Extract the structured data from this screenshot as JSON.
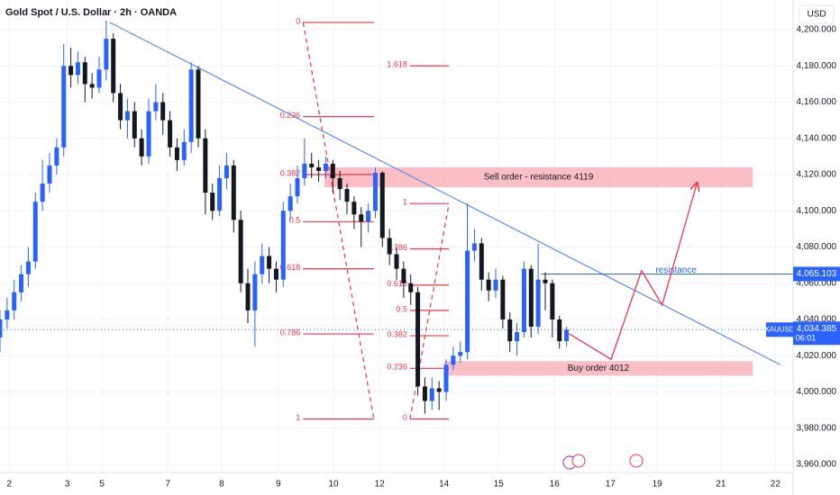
{
  "chart_data": {
    "type": "candlestick",
    "title": "Gold Spot / U.S. Dollar · 2h · OANDA",
    "currency": "USD",
    "symbol": "XAUUSD",
    "countdown": "06:01",
    "last_price": {
      "value": 4034.385,
      "label": "4,034.385"
    },
    "up_color": "#2962ff",
    "down_color": "#131722",
    "grid": true,
    "xlim": [
      0,
      112
    ],
    "ylim": [
      3955.5,
      4216.4
    ],
    "xticks": [
      {
        "value": 1.3,
        "label": "2"
      },
      {
        "value": 9.5,
        "label": "3"
      },
      {
        "value": 14.4,
        "label": "5"
      },
      {
        "value": 23.7,
        "label": "7"
      },
      {
        "value": 31.3,
        "label": "8"
      },
      {
        "value": 39.3,
        "label": "9"
      },
      {
        "value": 47.1,
        "label": "10"
      },
      {
        "value": 53.6,
        "label": "12"
      },
      {
        "value": 62.7,
        "label": "14"
      },
      {
        "value": 70.4,
        "label": "15"
      },
      {
        "value": 78.3,
        "label": "16"
      },
      {
        "value": 86.2,
        "label": "17"
      },
      {
        "value": 92.8,
        "label": "19"
      },
      {
        "value": 101.8,
        "label": "21"
      },
      {
        "value": 109.5,
        "label": "22"
      }
    ],
    "yticks": [
      {
        "value": 3960,
        "label": "3,960.000"
      },
      {
        "value": 3980,
        "label": "3,980.000"
      },
      {
        "value": 4000,
        "label": "4,000.000"
      },
      {
        "value": 4020,
        "label": "4,020.000"
      },
      {
        "value": 4040,
        "label": "4,040.000"
      },
      {
        "value": 4060,
        "label": "4,060.000"
      },
      {
        "value": 4080,
        "label": "4,080.000"
      },
      {
        "value": 4100,
        "label": "4,100.000"
      },
      {
        "value": 4120,
        "label": "4,120.000"
      },
      {
        "value": 4140,
        "label": "4,140.000"
      },
      {
        "value": 4160,
        "label": "4,160.000"
      },
      {
        "value": 4180,
        "label": "4,180.000"
      },
      {
        "value": 4200,
        "label": "4,200.000"
      }
    ],
    "x": [
      0,
      1,
      2,
      3,
      4,
      5,
      6,
      7,
      8,
      9,
      10,
      11,
      12,
      13,
      14,
      15,
      16,
      17,
      18,
      19,
      20,
      21,
      22,
      23,
      24,
      25,
      26,
      27,
      28,
      29,
      30,
      31,
      32,
      33,
      34,
      35,
      36,
      37,
      38,
      39,
      40,
      41,
      42,
      43,
      44,
      45,
      46,
      47,
      48,
      49,
      50,
      51,
      52,
      53,
      54,
      55,
      56,
      57,
      58,
      59,
      60,
      61,
      62,
      63,
      64,
      65,
      66,
      67,
      68,
      69,
      70,
      71,
      72,
      73,
      74,
      75,
      76,
      77,
      78,
      79,
      80
    ],
    "open": [
      4030,
      4040,
      4045,
      4055,
      4065,
      4072,
      4105,
      4115,
      4125,
      4135,
      4180,
      4175,
      4182,
      4170,
      4168,
      4178,
      4195,
      4165,
      4150,
      4155,
      4140,
      4130,
      4155,
      4160,
      4150,
      4135,
      4128,
      4138,
      4178,
      4140,
      4110,
      4100,
      4118,
      4125,
      4095,
      4060,
      4045,
      4065,
      4075,
      4068,
      4062,
      4100,
      4108,
      4118,
      4126,
      4124,
      4122,
      4126,
      4118,
      4112,
      4105,
      4098,
      4094,
      4100,
      4121,
      4085,
      4076,
      4068,
      4060,
      4055,
      4003,
      3995,
      4002,
      4000,
      4015,
      4020,
      4022,
      4078,
      4082,
      4062,
      4056,
      4062,
      4040,
      4028,
      4033,
      4068,
      4036,
      4062,
      4060,
      4040,
      4028
    ],
    "high": [
      4045,
      4052,
      4062,
      4070,
      4080,
      4110,
      4128,
      4132,
      4140,
      4192,
      4190,
      4188,
      4185,
      4176,
      4185,
      4205,
      4198,
      4170,
      4162,
      4160,
      4145,
      4162,
      4170,
      4165,
      4155,
      4140,
      4145,
      4182,
      4180,
      4145,
      4115,
      4125,
      4132,
      4128,
      4100,
      4068,
      4072,
      4082,
      4080,
      4072,
      4105,
      4115,
      4125,
      4140,
      4132,
      4128,
      4130,
      4128,
      4122,
      4115,
      4108,
      4102,
      4104,
      4124,
      4122,
      4090,
      4080,
      4072,
      4065,
      4058,
      4008,
      4008,
      4006,
      4018,
      4025,
      4028,
      4104,
      4090,
      4085,
      4066,
      4068,
      4064,
      4044,
      4038,
      4072,
      4070,
      4082,
      4066,
      4062,
      4042,
      4036
    ],
    "low": [
      4022,
      4035,
      4040,
      4050,
      4058,
      4068,
      4100,
      4110,
      4120,
      4130,
      4168,
      4170,
      4160,
      4162,
      4165,
      4172,
      4160,
      4145,
      4140,
      4135,
      4125,
      4126,
      4150,
      4142,
      4130,
      4122,
      4125,
      4132,
      4135,
      4098,
      4095,
      4097,
      4112,
      4088,
      4055,
      4038,
      4025,
      4060,
      4060,
      4055,
      4058,
      4095,
      4104,
      4114,
      4118,
      4116,
      4118,
      4110,
      4106,
      4098,
      4090,
      4080,
      4088,
      4096,
      4080,
      4070,
      4062,
      4052,
      4048,
      3998,
      3988,
      3990,
      3990,
      3995,
      4012,
      4016,
      4018,
      4072,
      4056,
      4050,
      4052,
      4035,
      4022,
      4020,
      4030,
      4030,
      4032,
      4045,
      4030,
      4024,
      4025
    ],
    "close": [
      4040,
      4045,
      4055,
      4065,
      4072,
      4105,
      4115,
      4125,
      4135,
      4180,
      4175,
      4182,
      4170,
      4168,
      4178,
      4195,
      4165,
      4150,
      4155,
      4140,
      4130,
      4155,
      4160,
      4150,
      4135,
      4128,
      4138,
      4178,
      4140,
      4110,
      4100,
      4118,
      4125,
      4095,
      4060,
      4045,
      4065,
      4075,
      4068,
      4062,
      4100,
      4108,
      4118,
      4126,
      4124,
      4122,
      4126,
      4118,
      4112,
      4105,
      4098,
      4094,
      4100,
      4121,
      4085,
      4076,
      4068,
      4060,
      4055,
      4003,
      3995,
      4002,
      4000,
      4015,
      4020,
      4022,
      4078,
      4082,
      4062,
      4056,
      4062,
      4040,
      4028,
      4033,
      4068,
      4036,
      4062,
      4060,
      4040,
      4028,
      4034.385
    ],
    "fibs": [
      {
        "x_range": [
          42.8,
          52.8
        ],
        "diagonal": [
          4204,
          3985
        ],
        "levels": [
          {
            "ratio": 0,
            "price": 4204
          },
          {
            "ratio": 0.236,
            "price": 4152
          },
          {
            "ratio": 0.382,
            "price": 4120
          },
          {
            "ratio": 0.5,
            "price": 4094
          },
          {
            "ratio": 0.618,
            "price": 4068
          },
          {
            "ratio": 0.786,
            "price": 4032
          },
          {
            "ratio": 1,
            "price": 3985
          }
        ]
      },
      {
        "x_range": [
          57.9,
          63.4
        ],
        "diagonal": [
          3985,
          4104
        ],
        "levels": [
          {
            "ratio": 1.618,
            "price": 4180
          },
          {
            "ratio": 1,
            "price": 4104
          },
          {
            "ratio": 0.786,
            "price": 4079
          },
          {
            "ratio": 0.618,
            "price": 4059
          },
          {
            "ratio": 0.5,
            "price": 4045
          },
          {
            "ratio": 0.382,
            "price": 4031
          },
          {
            "ratio": 0.236,
            "price": 4013
          },
          {
            "ratio": 0,
            "price": 3985
          }
        ]
      }
    ],
    "zones": [
      {
        "label": "Sell order - resistance 4119",
        "x_range": [
          45.8,
          106.3
        ],
        "price_range": [
          4113,
          4124
        ]
      },
      {
        "label": "Buy order 4012",
        "x_range": [
          62.7,
          106.3
        ],
        "price_range": [
          4009,
          4017
        ]
      }
    ],
    "trendline": {
      "x": [
        15.5,
        110.2
      ],
      "values": [
        4204,
        4015
      ]
    },
    "resistance": {
      "label": "resistance",
      "x_start": 76.4,
      "price": {
        "value": 4065.103,
        "label": "4,065.103"
      }
    },
    "projection": {
      "x": [
        80.4,
        86.3,
        90.6,
        93.5,
        98.4
      ],
      "values": [
        4032,
        4018,
        4067,
        4048,
        4115
      ]
    }
  }
}
